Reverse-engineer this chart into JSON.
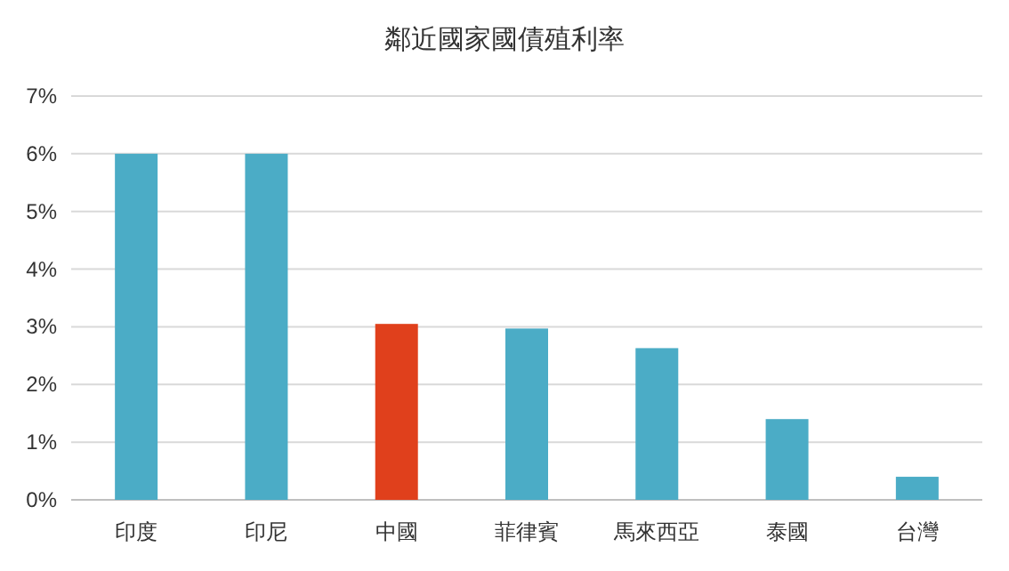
{
  "chart_data": {
    "type": "bar",
    "title": "鄰近國家國債殖利率",
    "categories": [
      "印度",
      "印尼",
      "中國",
      "菲律賓",
      "馬來西亞",
      "泰國",
      "台灣"
    ],
    "values": [
      6.0,
      6.0,
      3.05,
      2.97,
      2.63,
      1.4,
      0.4
    ],
    "colors": [
      "#4bacc6",
      "#4bacc6",
      "#e0401c",
      "#4bacc6",
      "#4bacc6",
      "#4bacc6",
      "#4bacc6"
    ],
    "ylim": [
      0,
      7
    ],
    "yticks": [
      {
        "value": 0,
        "label": "0%"
      },
      {
        "value": 1,
        "label": "1%"
      },
      {
        "value": 2,
        "label": "2%"
      },
      {
        "value": 3,
        "label": "3%"
      },
      {
        "value": 4,
        "label": "4%"
      },
      {
        "value": 5,
        "label": "5%"
      },
      {
        "value": 6,
        "label": "6%"
      },
      {
        "value": 7,
        "label": "7%"
      }
    ],
    "grid": "y"
  }
}
